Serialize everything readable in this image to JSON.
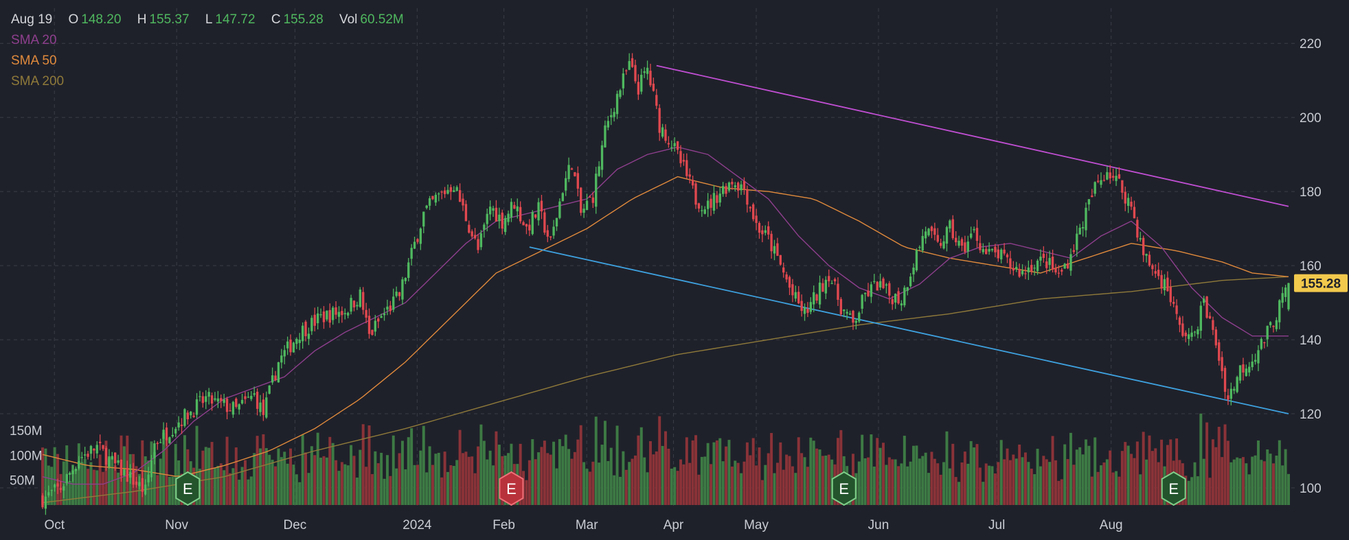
{
  "header": {
    "date": "Aug 19",
    "open_label": "O",
    "open": "148.20",
    "high_label": "H",
    "high": "155.37",
    "low_label": "L",
    "low": "147.72",
    "close_label": "C",
    "close": "155.28",
    "vol_label": "Vol",
    "vol": "60.52M"
  },
  "indicators": [
    {
      "label": "SMA 20",
      "color": "#8e3f8e"
    },
    {
      "label": "SMA 50",
      "color": "#e08a3c"
    },
    {
      "label": "SMA 200",
      "color": "#8f7a3a"
    }
  ],
  "colors": {
    "up": "#4fb85f",
    "down": "#e0484f",
    "vol_up": "#3d7a44",
    "vol_down": "#8a3338",
    "grid": "#3a3d47",
    "bg": "#1f212a",
    "upper_trend": "#c14fd4",
    "lower_trend": "#3ea2e0",
    "price_badge": "#f2c94c"
  },
  "chart_data": {
    "type": "candlestick",
    "x_ticks": [
      "Oct",
      "Nov",
      "Dec",
      "2024",
      "Feb",
      "Mar",
      "Apr",
      "May",
      "Jun",
      "Jul",
      "Aug"
    ],
    "x_ticks_weekday_index": [
      3,
      34,
      64,
      95,
      117,
      138,
      160,
      181,
      212,
      242,
      271
    ],
    "y_ticks": [
      100,
      120,
      140,
      160,
      180,
      200,
      220
    ],
    "ylim": [
      95,
      228
    ],
    "volume_ticks": [
      "150M",
      "100M",
      "50M"
    ],
    "volume_tick_values": [
      150,
      100,
      50
    ],
    "volume_max": 220,
    "last_price": "155.28",
    "trading_days": 316,
    "price_path": [
      [
        0,
        97
      ],
      [
        6,
        100
      ],
      [
        12,
        108
      ],
      [
        18,
        111
      ],
      [
        24,
        106
      ],
      [
        30,
        102
      ],
      [
        34,
        99
      ],
      [
        37,
        112
      ],
      [
        45,
        118
      ],
      [
        54,
        124
      ],
      [
        64,
        121
      ],
      [
        70,
        125
      ],
      [
        73,
        120
      ],
      [
        78,
        134
      ],
      [
        85,
        142
      ],
      [
        92,
        146
      ],
      [
        100,
        148
      ],
      [
        105,
        152
      ],
      [
        108,
        141
      ],
      [
        112,
        146
      ],
      [
        118,
        152
      ],
      [
        122,
        163
      ],
      [
        126,
        174
      ],
      [
        130,
        178
      ],
      [
        136,
        182
      ],
      [
        140,
        173
      ],
      [
        144,
        164
      ],
      [
        148,
        176
      ],
      [
        152,
        172
      ],
      [
        156,
        177
      ],
      [
        160,
        170
      ],
      [
        164,
        175
      ],
      [
        168,
        166
      ],
      [
        172,
        181
      ],
      [
        175,
        188
      ],
      [
        178,
        174
      ],
      [
        182,
        179
      ],
      [
        186,
        196
      ],
      [
        190,
        206
      ],
      [
        194,
        214
      ],
      [
        197,
        208
      ],
      [
        200,
        213
      ],
      [
        204,
        198
      ],
      [
        208,
        193
      ],
      [
        212,
        186
      ],
      [
        216,
        178
      ],
      [
        220,
        176
      ],
      [
        224,
        180
      ],
      [
        228,
        183
      ],
      [
        232,
        181
      ],
      [
        236,
        171
      ],
      [
        240,
        167
      ],
      [
        244,
        160
      ],
      [
        248,
        152
      ],
      [
        252,
        147
      ],
      [
        256,
        152
      ],
      [
        260,
        158
      ],
      [
        264,
        149
      ],
      [
        268,
        144
      ],
      [
        272,
        152
      ],
      [
        276,
        155
      ],
      [
        280,
        152
      ],
      [
        284,
        151
      ],
      [
        288,
        161
      ],
      [
        292,
        170
      ],
      [
        296,
        165
      ],
      [
        300,
        170
      ],
      [
        304,
        164
      ],
      [
        308,
        169
      ],
      [
        312,
        163
      ],
      [
        316,
        163
      ],
      [
        320,
        160
      ],
      [
        324,
        158
      ],
      [
        328,
        161
      ],
      [
        332,
        161
      ],
      [
        336,
        157
      ],
      [
        340,
        163
      ],
      [
        344,
        172
      ],
      [
        348,
        181
      ],
      [
        352,
        186
      ],
      [
        356,
        182
      ],
      [
        360,
        176
      ],
      [
        364,
        163
      ],
      [
        368,
        158
      ],
      [
        372,
        154
      ],
      [
        376,
        143
      ],
      [
        380,
        140
      ],
      [
        384,
        150
      ],
      [
        388,
        139
      ],
      [
        392,
        124
      ],
      [
        396,
        132
      ],
      [
        400,
        135
      ],
      [
        404,
        140
      ],
      [
        408,
        147
      ],
      [
        412,
        155
      ]
    ],
    "sma20": [
      [
        0,
        103
      ],
      [
        10,
        101
      ],
      [
        20,
        101
      ],
      [
        30,
        104
      ],
      [
        40,
        110
      ],
      [
        50,
        118
      ],
      [
        60,
        124
      ],
      [
        70,
        127
      ],
      [
        80,
        130
      ],
      [
        90,
        137
      ],
      [
        100,
        142
      ],
      [
        110,
        146
      ],
      [
        120,
        150
      ],
      [
        130,
        158
      ],
      [
        140,
        166
      ],
      [
        150,
        172
      ],
      [
        160,
        174
      ],
      [
        170,
        176
      ],
      [
        180,
        178
      ],
      [
        190,
        186
      ],
      [
        200,
        190
      ],
      [
        210,
        192
      ],
      [
        220,
        190
      ],
      [
        230,
        184
      ],
      [
        240,
        178
      ],
      [
        250,
        168
      ],
      [
        260,
        160
      ],
      [
        270,
        154
      ],
      [
        280,
        151
      ],
      [
        290,
        155
      ],
      [
        300,
        162
      ],
      [
        310,
        165
      ],
      [
        320,
        166
      ],
      [
        330,
        164
      ],
      [
        340,
        162
      ],
      [
        350,
        168
      ],
      [
        360,
        172
      ],
      [
        370,
        165
      ],
      [
        380,
        154
      ],
      [
        390,
        146
      ],
      [
        400,
        141
      ],
      [
        412,
        141
      ]
    ],
    "sma50": [
      [
        0,
        109
      ],
      [
        15,
        106
      ],
      [
        30,
        105
      ],
      [
        45,
        103
      ],
      [
        60,
        106
      ],
      [
        75,
        110
      ],
      [
        90,
        116
      ],
      [
        105,
        124
      ],
      [
        120,
        134
      ],
      [
        135,
        146
      ],
      [
        150,
        158
      ],
      [
        165,
        164
      ],
      [
        180,
        170
      ],
      [
        195,
        178
      ],
      [
        210,
        184
      ],
      [
        225,
        181
      ],
      [
        240,
        180
      ],
      [
        255,
        178
      ],
      [
        270,
        172
      ],
      [
        285,
        165
      ],
      [
        300,
        162
      ],
      [
        315,
        160
      ],
      [
        330,
        158
      ],
      [
        345,
        162
      ],
      [
        360,
        166
      ],
      [
        375,
        164
      ],
      [
        390,
        161
      ],
      [
        400,
        158
      ],
      [
        412,
        157
      ]
    ],
    "sma200": [
      [
        0,
        96
      ],
      [
        30,
        99
      ],
      [
        60,
        103
      ],
      [
        90,
        110
      ],
      [
        120,
        116
      ],
      [
        150,
        123
      ],
      [
        180,
        130
      ],
      [
        210,
        136
      ],
      [
        240,
        140
      ],
      [
        270,
        144
      ],
      [
        300,
        147
      ],
      [
        330,
        151
      ],
      [
        360,
        153
      ],
      [
        390,
        156
      ],
      [
        412,
        157
      ]
    ],
    "trendlines": [
      {
        "name": "upper",
        "from": [
          203,
          214
        ],
        "to": [
          412,
          176
        ]
      },
      {
        "name": "lower",
        "from": [
          161,
          165
        ],
        "to": [
          412,
          120
        ]
      }
    ],
    "earnings_markers": [
      {
        "x": 48,
        "type": "positive",
        "label": "E"
      },
      {
        "x": 155,
        "type": "negative",
        "label": "E"
      },
      {
        "x": 265,
        "type": "positive",
        "label": "E"
      },
      {
        "x": 374,
        "type": "positive",
        "label": "E"
      }
    ]
  }
}
